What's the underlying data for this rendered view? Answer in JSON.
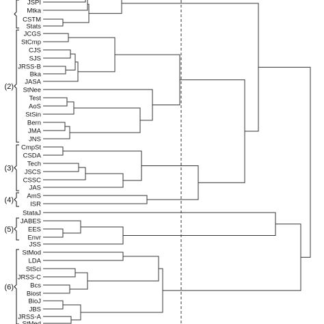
{
  "leaves": [
    "JSPI",
    "Mtka",
    "CSTM",
    "Stats",
    "JCGS",
    "StCmp",
    "CJS",
    "SJS",
    "JRSS-B",
    "Bka",
    "JASA",
    "StNee",
    "Test",
    "AoS",
    "StSin",
    "Bern",
    "JMA",
    "JNS",
    "CmpSt",
    "CSDA",
    "Tech",
    "JSCS",
    "CSSC",
    "JAS",
    "AmS",
    "ISR",
    "StataJ",
    "JABES",
    "EES",
    "Envr",
    "JSS",
    "StMod",
    "LDA",
    "StSci",
    "JRSS-C",
    "Bcs",
    "Biost",
    "BioJ",
    "JBS",
    "JRSS-A",
    "StMed"
  ],
  "groups": [
    {
      "label": "(2)"
    },
    {
      "label": "(3)"
    },
    {
      "label": "(4)"
    },
    {
      "label": "(5)"
    },
    {
      "label": "(6)"
    }
  ],
  "cut_line": {
    "style": "dashed"
  }
}
